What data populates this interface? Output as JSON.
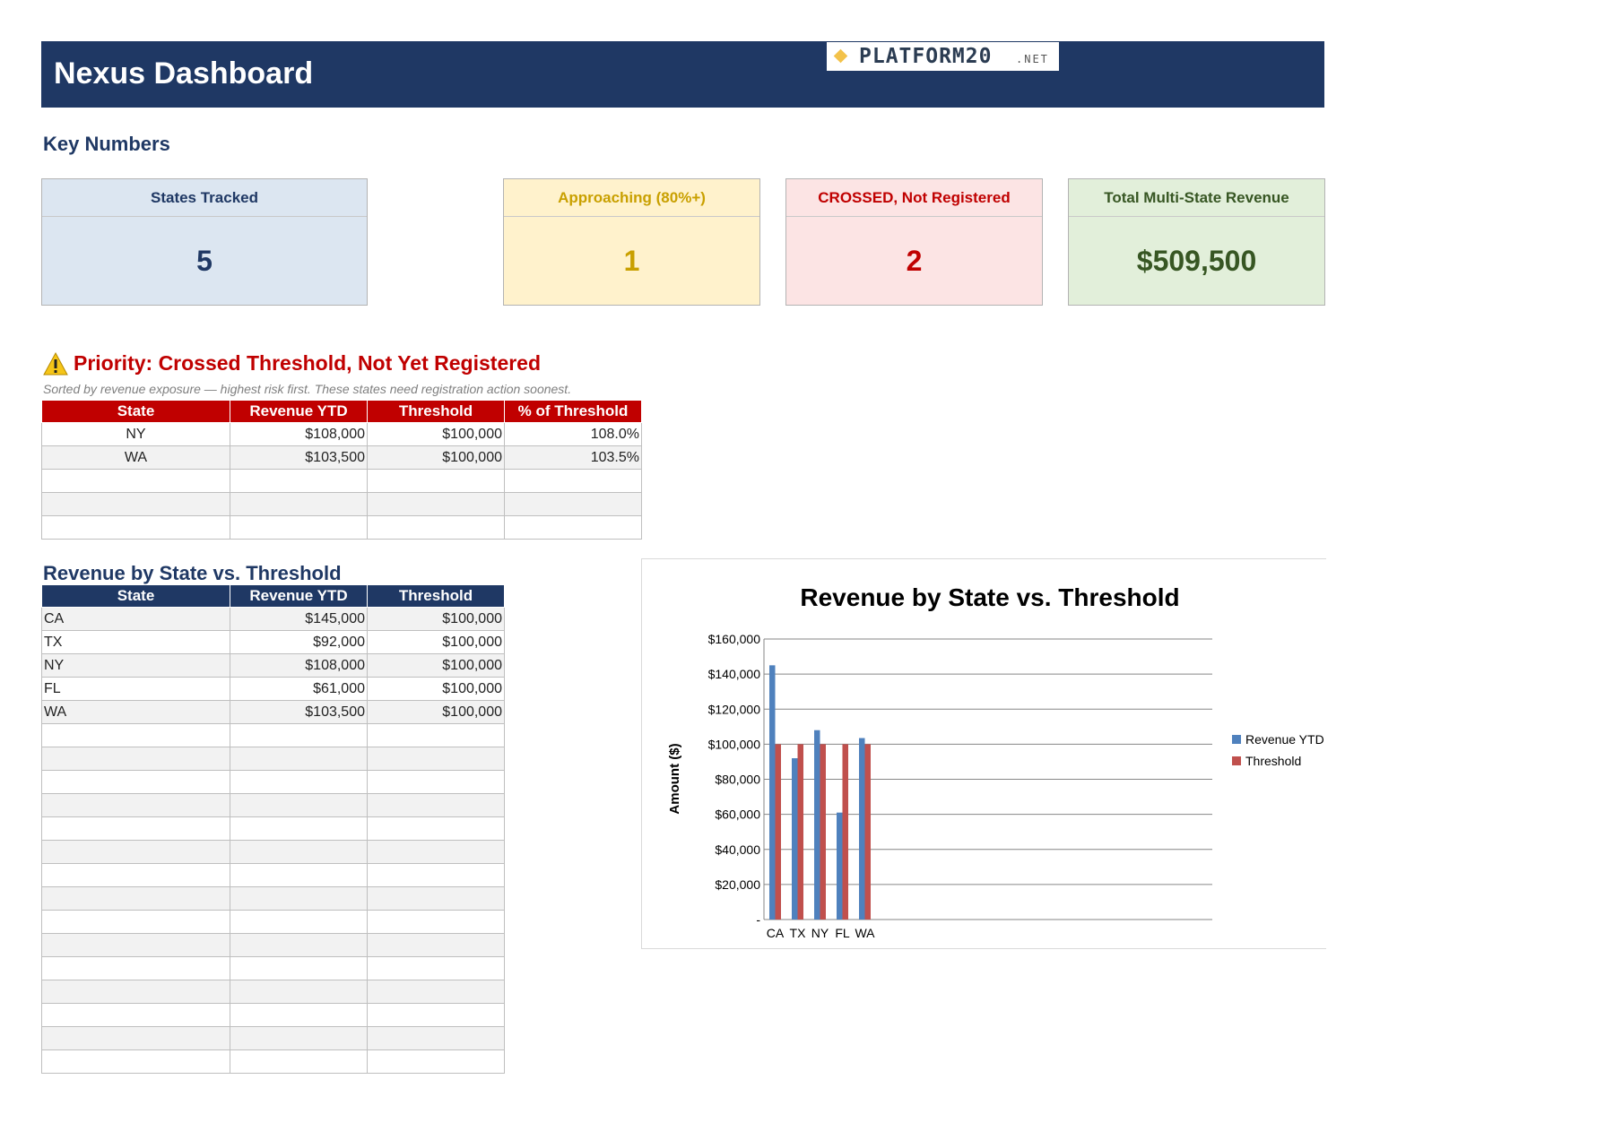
{
  "header": {
    "title": "Nexus Dashboard",
    "logo_text": "PLATFORM20",
    "logo_suffix": ".NET"
  },
  "key_numbers": {
    "title": "Key Numbers",
    "cards": [
      {
        "label": "States Tracked",
        "value": "5",
        "label_color": "#1f3864",
        "value_color": "#1f3864",
        "bg": "#dce6f1"
      },
      {
        "label": "Approaching (80%+)",
        "value": "1",
        "label_color": "#c9a000",
        "value_color": "#c9a000",
        "bg": "#fff2cc"
      },
      {
        "label": "CROSSED, Not Registered",
        "value": "2",
        "label_color": "#c00000",
        "value_color": "#c00000",
        "bg": "#fce4e4"
      },
      {
        "label": "Total Multi-State Revenue",
        "value": "$509,500",
        "label_color": "#375623",
        "value_color": "#375623",
        "bg": "#e2efda"
      }
    ]
  },
  "priority": {
    "title": "Priority: Crossed Threshold, Not Yet Registered",
    "icon": "warning-icon",
    "note": "Sorted by revenue exposure — highest risk first. These states need registration action soonest.",
    "header_color": "#c00000",
    "columns": [
      "State",
      "Revenue YTD",
      "Threshold",
      "% of Threshold"
    ],
    "rows": [
      [
        "NY",
        "$108,000",
        "$100,000",
        "108.0%"
      ],
      [
        "WA",
        "$103,500",
        "$100,000",
        "103.5%"
      ],
      [
        "",
        "",
        "",
        ""
      ],
      [
        "",
        "",
        "",
        ""
      ],
      [
        "",
        "",
        "",
        ""
      ]
    ]
  },
  "revenue_table": {
    "title": "Revenue by State vs. Threshold",
    "header_color": "#1f3864",
    "columns": [
      "State",
      "Revenue YTD",
      "Threshold"
    ],
    "rows": [
      [
        "CA",
        "$145,000",
        "$100,000"
      ],
      [
        "TX",
        "$92,000",
        "$100,000"
      ],
      [
        "NY",
        "$108,000",
        "$100,000"
      ],
      [
        "FL",
        "$61,000",
        "$100,000"
      ],
      [
        "WA",
        "$103,500",
        "$100,000"
      ],
      [
        "",
        "",
        ""
      ],
      [
        "",
        "",
        ""
      ],
      [
        "",
        "",
        ""
      ],
      [
        "",
        "",
        ""
      ],
      [
        "",
        "",
        ""
      ],
      [
        "",
        "",
        ""
      ],
      [
        "",
        "",
        ""
      ],
      [
        "",
        "",
        ""
      ],
      [
        "",
        "",
        ""
      ],
      [
        "",
        "",
        ""
      ],
      [
        "",
        "",
        ""
      ],
      [
        "",
        "",
        ""
      ],
      [
        "",
        "",
        ""
      ],
      [
        "",
        "",
        ""
      ],
      [
        "",
        "",
        ""
      ]
    ]
  },
  "chart_data": {
    "type": "bar",
    "title": "Revenue by State vs. Threshold",
    "xlabel": "",
    "ylabel": "Amount ($)",
    "categories": [
      "CA",
      "TX",
      "NY",
      "FL",
      "WA"
    ],
    "series": [
      {
        "name": "Revenue YTD",
        "values": [
          145000,
          92000,
          108000,
          61000,
          103500
        ],
        "color": "#4f81bd"
      },
      {
        "name": "Threshold",
        "values": [
          100000,
          100000,
          100000,
          100000,
          100000
        ],
        "color": "#c0504d"
      }
    ],
    "ylim": [
      0,
      160000
    ],
    "yticks": [
      "-",
      "$20,000",
      "$40,000",
      "$60,000",
      "$80,000",
      "$100,000",
      "$120,000",
      "$140,000",
      "$160,000"
    ],
    "grid": true,
    "legend": "right"
  }
}
